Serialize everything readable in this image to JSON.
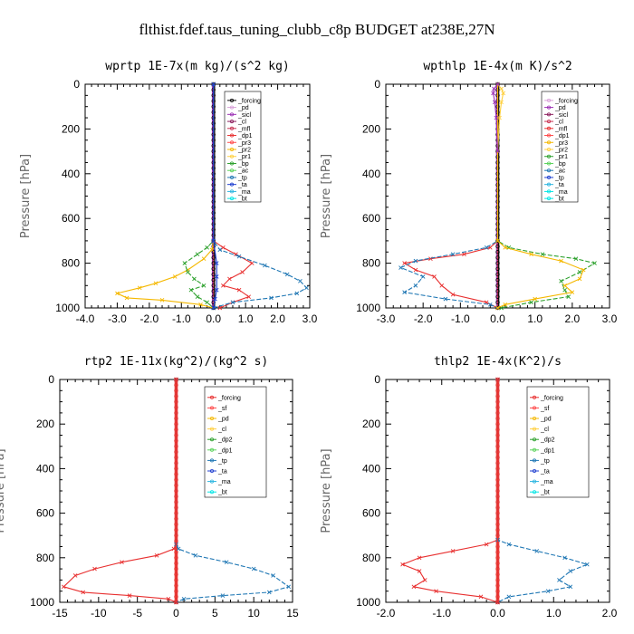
{
  "figure": {
    "title": "flthist.fdef.taus_tuning_clubb_c8p  BUDGET at238E,27N"
  },
  "chart_data": [
    {
      "type": "line",
      "title": "wprtp  1E-7x(m kg)/(s^2 kg)",
      "ylabel": "Pressure [hPa]",
      "xlim": [
        -4.0,
        3.0
      ],
      "ylim": [
        1000,
        0
      ],
      "xticks": [
        -4.0,
        -3.0,
        -2.0,
        -1.0,
        0.0,
        1.0,
        2.0,
        3.0
      ],
      "xtick_labels": [
        "-4.0",
        "-3.0",
        "-2.0",
        "-1.0",
        "0.0",
        "1.0",
        "2.0",
        "3.0"
      ],
      "yticks": [
        0,
        200,
        400,
        600,
        800,
        1000
      ],
      "legend_position": "top-right",
      "legend": [
        "_forcing",
        "_pd",
        "_sicl",
        "_cl",
        "_mfl",
        "_dp1",
        "_pr3",
        "_pr2",
        "_pr1",
        "_bp",
        "_ac",
        "_tp",
        "_ta",
        "_ma",
        "_bt"
      ],
      "colors": [
        "#000000",
        "#d9a0d9",
        "#9b30b4",
        "#8a1a5a",
        "#c83050",
        "#e83030",
        "#ff4a4a",
        "#f5b800",
        "#ffd040",
        "#2ca02c",
        "#5bd35b",
        "#1f77b4",
        "#1f3fd0",
        "#2bb5e0",
        "#00e5e5"
      ],
      "series": [
        {
          "name": "_pr2",
          "x": [
            0,
            0,
            -0.05,
            -0.3,
            -0.8,
            -1.2,
            -1.8,
            -2.3,
            -3.0,
            -2.7,
            -1.6,
            -0.4,
            0
          ],
          "y": [
            0,
            700,
            740,
            780,
            830,
            860,
            890,
            910,
            935,
            955,
            965,
            985,
            1000
          ]
        },
        {
          "name": "_bp",
          "x": [
            0,
            0,
            -0.2,
            -0.5,
            -0.9,
            -0.8,
            -0.6,
            -0.3,
            -0.7,
            -0.5,
            -0.2,
            0
          ],
          "y": [
            0,
            700,
            730,
            760,
            800,
            840,
            870,
            900,
            920,
            950,
            975,
            1000
          ]
        },
        {
          "name": "_dp1",
          "x": [
            0,
            0,
            0.3,
            0.7,
            1.2,
            0.9,
            0.5,
            0.3,
            0.8,
            1.1,
            0.6,
            0.2
          ],
          "y": [
            0,
            700,
            730,
            760,
            800,
            840,
            870,
            900,
            920,
            950,
            975,
            1000
          ]
        },
        {
          "name": "_tp",
          "x": [
            0,
            0,
            0.2,
            0.8,
            1.6,
            2.3,
            2.7,
            2.9,
            2.6,
            1.8,
            0.6,
            0
          ],
          "y": [
            0,
            700,
            740,
            770,
            810,
            850,
            880,
            910,
            935,
            955,
            975,
            1000
          ]
        },
        {
          "name": "_ta",
          "x": [
            0,
            0,
            0.1,
            0.1,
            0.1,
            0.05,
            0
          ],
          "y": [
            0,
            700,
            800,
            860,
            920,
            960,
            1000
          ]
        }
      ]
    },
    {
      "type": "line",
      "title": "wpthlp  1E-4x(m K)/s^2",
      "ylabel": "Pressure [hPa]",
      "xlim": [
        -3.0,
        3.0
      ],
      "ylim": [
        1000,
        0
      ],
      "xticks": [
        -3.0,
        -2.0,
        -1.0,
        0.0,
        1.0,
        2.0,
        3.0
      ],
      "xtick_labels": [
        "-3.0",
        "-2.0",
        "-1.0",
        "0.0",
        "1.0",
        "2.0",
        "3.0"
      ],
      "yticks": [
        0,
        200,
        400,
        600,
        800,
        1000
      ],
      "legend_position": "top-right",
      "legend": [
        "_forcing",
        "_pd",
        "_sicl",
        "_cl",
        "_mfl",
        "_dp1",
        "_pr3",
        "_pr2",
        "_pr1",
        "_bp",
        "_ac",
        "_tp",
        "_ta",
        "_ma",
        "_bt"
      ],
      "colors": [
        "#d9a0d9",
        "#9b30b4",
        "#8a1a5a",
        "#c83050",
        "#e83030",
        "#ff4a4a",
        "#f5b800",
        "#ffd040",
        "#2ca02c",
        "#5bd35b",
        "#1f77b4",
        "#1f3fd0",
        "#2bb5e0",
        "#00e5e5",
        "#00e5e5"
      ],
      "series": [
        {
          "name": "_dp1",
          "x": [
            0,
            0,
            -0.2,
            -0.9,
            -1.8,
            -2.5,
            -2.2,
            -1.7,
            -1.5,
            -1.2,
            -0.3,
            0
          ],
          "y": [
            0,
            700,
            730,
            760,
            780,
            800,
            830,
            860,
            900,
            940,
            975,
            1000
          ]
        },
        {
          "name": "_tp",
          "x": [
            0,
            0,
            -0.3,
            -1.2,
            -2.2,
            -2.6,
            -2.0,
            -2.2,
            -2.5,
            -1.4,
            -0.2,
            0
          ],
          "y": [
            0,
            700,
            730,
            760,
            790,
            820,
            860,
            900,
            930,
            960,
            985,
            1000
          ]
        },
        {
          "name": "_bp",
          "x": [
            0,
            0,
            0.3,
            1.2,
            2.1,
            2.6,
            2.2,
            1.7,
            1.8,
            1.9,
            0.9,
            0.1
          ],
          "y": [
            0,
            700,
            730,
            760,
            780,
            800,
            840,
            880,
            920,
            950,
            975,
            1000
          ]
        },
        {
          "name": "_pr2",
          "x": [
            0,
            0,
            0.2,
            0.9,
            1.7,
            2.3,
            2.2,
            1.8,
            2.0,
            1.0,
            0.2,
            0
          ],
          "y": [
            0,
            700,
            730,
            760,
            790,
            830,
            870,
            900,
            930,
            960,
            985,
            1000
          ]
        },
        {
          "name": "_pr1",
          "x": [
            0,
            0.1,
            0.15,
            0.1,
            0.05,
            0
          ],
          "y": [
            0,
            20,
            40,
            80,
            150,
            300
          ]
        },
        {
          "name": "_pd",
          "x": [
            0,
            -0.1,
            -0.12,
            -0.08,
            -0.04,
            0
          ],
          "y": [
            0,
            20,
            40,
            80,
            150,
            300
          ]
        }
      ]
    },
    {
      "type": "line",
      "title": "rtp2  1E-11x(kg^2)/(kg^2 s)",
      "ylabel": "Pressure [hPa]",
      "xlim": [
        -15,
        15
      ],
      "ylim": [
        1000,
        0
      ],
      "xticks": [
        -15,
        -10,
        -5,
        0,
        5,
        10,
        15
      ],
      "xtick_labels": [
        "-15",
        "-10",
        "-5",
        "0",
        "5",
        "10",
        "15"
      ],
      "yticks": [
        0,
        200,
        400,
        600,
        800,
        1000
      ],
      "legend_position": "top-right",
      "legend": [
        "_forcing",
        "_sf",
        "_pd",
        "_cl",
        "_dp2",
        "_dp1",
        "_tp",
        "_ta",
        "_ma",
        "_bt"
      ],
      "colors": [
        "#e83030",
        "#ff4a4a",
        "#f5b800",
        "#ffd040",
        "#2ca02c",
        "#5bd35b",
        "#1f77b4",
        "#1f3fd0",
        "#2bb5e0",
        "#00e5e5"
      ],
      "series": [
        {
          "name": "_dp1",
          "x": [
            0,
            0,
            -0.3,
            -2.5,
            -7.0,
            -10.5,
            -13.0,
            -14.5,
            -12.0,
            -6.0,
            -1.0,
            0
          ],
          "y": [
            0,
            740,
            760,
            790,
            820,
            850,
            880,
            930,
            955,
            970,
            985,
            1000
          ]
        },
        {
          "name": "_tp",
          "x": [
            0,
            0,
            0.3,
            2.5,
            6.5,
            10.0,
            12.5,
            14.5,
            12.0,
            6.0,
            1.0,
            0
          ],
          "y": [
            0,
            740,
            760,
            790,
            820,
            850,
            880,
            930,
            955,
            970,
            985,
            1000
          ]
        },
        {
          "name": "_forcing",
          "x": [
            0,
            0
          ],
          "y": [
            0,
            1000
          ]
        }
      ]
    },
    {
      "type": "line",
      "title": "thlp2  1E-4x(K^2)/s",
      "ylabel": "Pressure [hPa]",
      "xlim": [
        -2.0,
        2.0
      ],
      "ylim": [
        1000,
        0
      ],
      "xticks": [
        -2.0,
        -1.0,
        0.0,
        1.0,
        2.0
      ],
      "xtick_labels": [
        "-2.0",
        "-1.0",
        "0.0",
        "1.0",
        "2.0"
      ],
      "yticks": [
        0,
        200,
        400,
        600,
        800,
        1000
      ],
      "legend_position": "top-right",
      "legend": [
        "_forcing",
        "_sf",
        "_pd",
        "_cl",
        "_dp2",
        "_dp1",
        "_tp",
        "_ta",
        "_ma",
        "_bt"
      ],
      "colors": [
        "#e83030",
        "#ff4a4a",
        "#f5b800",
        "#ffd040",
        "#2ca02c",
        "#5bd35b",
        "#1f77b4",
        "#1f3fd0",
        "#2bb5e0",
        "#00e5e5"
      ],
      "series": [
        {
          "name": "_dp1",
          "x": [
            0,
            0,
            -0.2,
            -0.8,
            -1.4,
            -1.7,
            -1.4,
            -1.3,
            -1.5,
            -1.1,
            -0.3,
            0
          ],
          "y": [
            0,
            720,
            740,
            770,
            800,
            830,
            860,
            900,
            930,
            950,
            975,
            1000
          ]
        },
        {
          "name": "_tp",
          "x": [
            0,
            0,
            0.2,
            0.7,
            1.2,
            1.6,
            1.3,
            1.1,
            1.3,
            0.9,
            0.2,
            0
          ],
          "y": [
            0,
            720,
            740,
            770,
            800,
            830,
            860,
            900,
            930,
            950,
            975,
            1000
          ]
        },
        {
          "name": "_forcing",
          "x": [
            0,
            0
          ],
          "y": [
            0,
            1000
          ]
        }
      ]
    }
  ]
}
